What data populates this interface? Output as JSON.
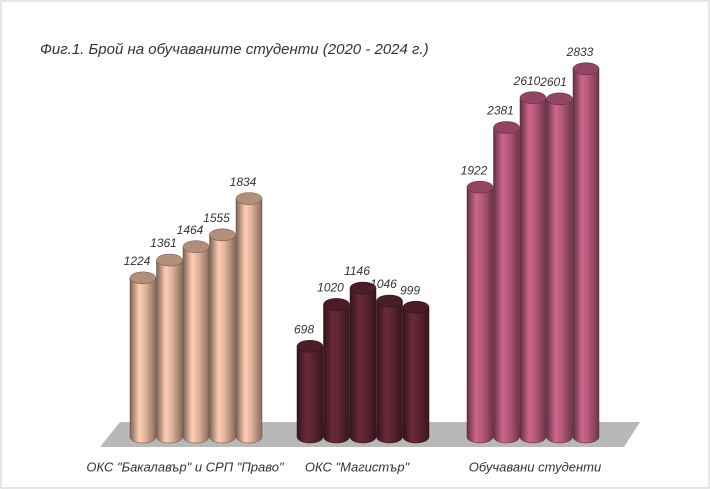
{
  "chart_data": {
    "type": "cylinder-bar",
    "title": "Фиг.1. Брой на обучаваните студенти (2020 - 2024 г.)",
    "groups": [
      {
        "category": "ОКС \"Бакалавър\" и СРП \"Право\"",
        "color": "#e0b29a",
        "values": [
          1224,
          1361,
          1464,
          1555,
          1834
        ]
      },
      {
        "category": "ОКС \"Магистър\"",
        "color": "#5c2431",
        "values": [
          698,
          1020,
          1146,
          1046,
          999
        ]
      },
      {
        "category": "Обучавани студенти",
        "color": "#b4587a",
        "values": [
          1922,
          2381,
          2610,
          2601,
          2833
        ]
      }
    ]
  }
}
